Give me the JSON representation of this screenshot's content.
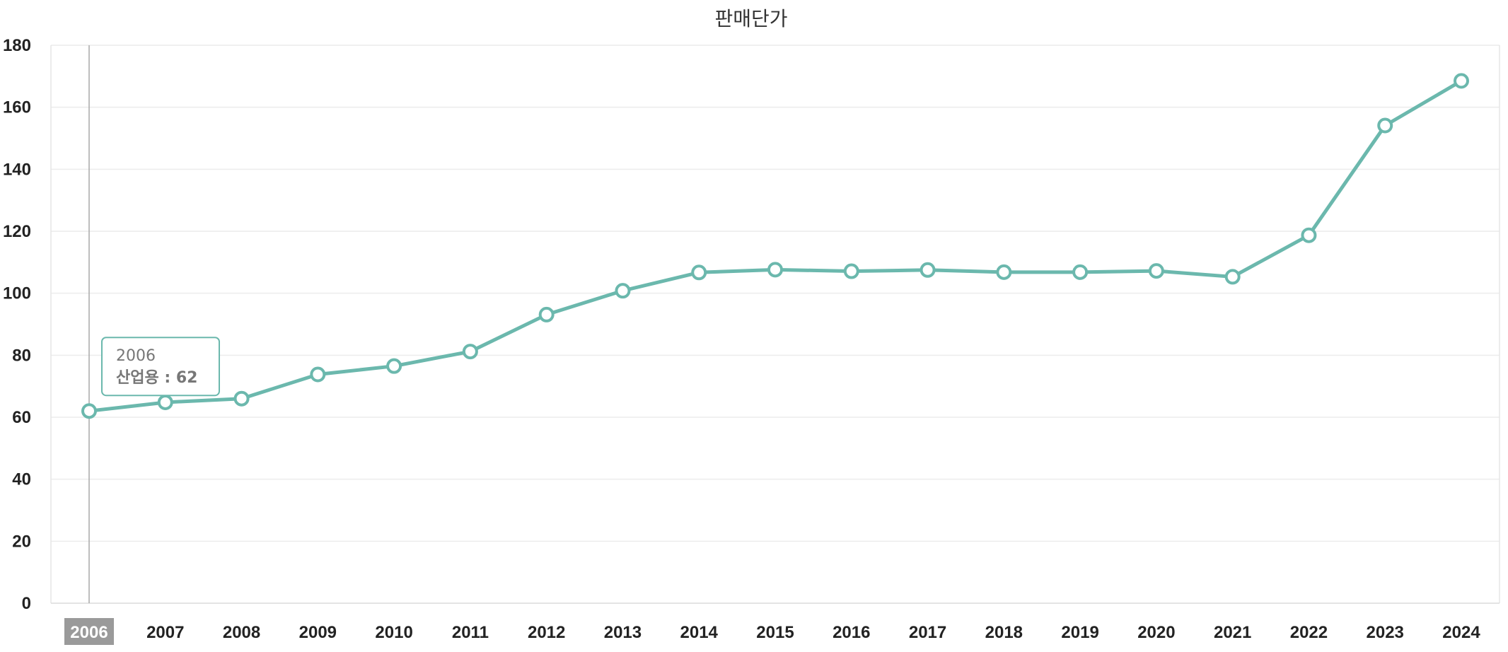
{
  "chart_data": {
    "type": "line",
    "title": "판매단가",
    "x": [
      "2006",
      "2007",
      "2008",
      "2009",
      "2010",
      "2011",
      "2012",
      "2013",
      "2014",
      "2015",
      "2016",
      "2017",
      "2018",
      "2019",
      "2020",
      "2021",
      "2022",
      "2023",
      "2024"
    ],
    "series": [
      {
        "name": "산업용",
        "values": [
          62,
          64.8,
          66,
          73.8,
          76.5,
          81.2,
          93.1,
          100.8,
          106.7,
          107.6,
          107.1,
          107.5,
          106.8,
          106.8,
          107.2,
          105.3,
          118.7,
          154.1,
          168.5
        ]
      }
    ],
    "y_ticks": [
      "0",
      "20",
      "40",
      "60",
      "80",
      "100",
      "120",
      "140",
      "160",
      "180"
    ],
    "ylim": [
      0,
      180
    ],
    "grid": true,
    "line_color": "#6bb8ad",
    "highlight_band_color": "#9a9a9a",
    "tooltip": {
      "year": "2006",
      "series_label": "산업용",
      "value_text": "62",
      "line2": "산업용 : 62"
    },
    "active_x": "2006"
  }
}
